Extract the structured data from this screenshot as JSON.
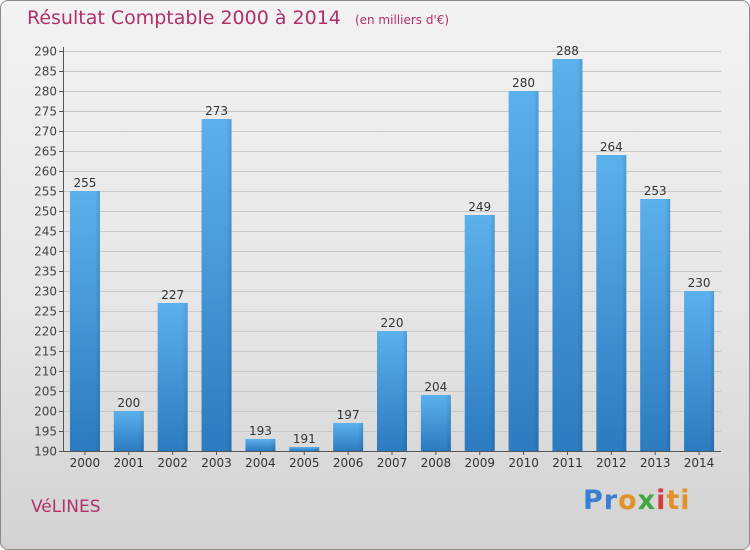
{
  "chart_data": {
    "type": "bar",
    "title": "Résultat Comptable 2000 à 2014",
    "subtitle": "(en milliers d'€)",
    "xlabel": "",
    "ylabel": "",
    "categories": [
      "2000",
      "2001",
      "2002",
      "2003",
      "2004",
      "2005",
      "2006",
      "2007",
      "2008",
      "2009",
      "2010",
      "2011",
      "2012",
      "2013",
      "2014"
    ],
    "values": [
      255,
      200,
      227,
      273,
      193,
      191,
      197,
      220,
      204,
      249,
      280,
      288,
      264,
      253,
      230
    ],
    "ylim": [
      190,
      290
    ],
    "ytick_step": 5,
    "grid": true,
    "bar_color": "#3d96dc"
  },
  "commune": "VéLINES",
  "brand": {
    "parts": [
      "Pr",
      "o",
      "x",
      "i",
      "ti"
    ]
  }
}
